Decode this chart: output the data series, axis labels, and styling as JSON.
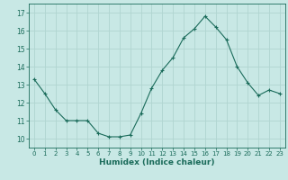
{
  "x": [
    0,
    1,
    2,
    3,
    4,
    5,
    6,
    7,
    8,
    9,
    10,
    11,
    12,
    13,
    14,
    15,
    16,
    17,
    18,
    19,
    20,
    21,
    22,
    23
  ],
  "y": [
    13.3,
    12.5,
    11.6,
    11.0,
    11.0,
    11.0,
    10.3,
    10.1,
    10.1,
    10.2,
    11.4,
    12.8,
    13.8,
    14.5,
    15.6,
    16.1,
    16.8,
    16.2,
    15.5,
    14.0,
    13.1,
    12.4,
    12.7,
    12.5
  ],
  "line_color": "#1a6b5a",
  "bg_color": "#c8e8e5",
  "grid_color": "#b0d4d0",
  "xlabel": "Humidex (Indice chaleur)",
  "ylim": [
    9.5,
    17.5
  ],
  "xlim": [
    -0.5,
    23.5
  ],
  "yticks": [
    10,
    11,
    12,
    13,
    14,
    15,
    16,
    17
  ],
  "xticks": [
    0,
    1,
    2,
    3,
    4,
    5,
    6,
    7,
    8,
    9,
    10,
    11,
    12,
    13,
    14,
    15,
    16,
    17,
    18,
    19,
    20,
    21,
    22,
    23
  ],
  "tick_color": "#1a6b5a",
  "xlabel_color": "#1a6b5a",
  "marker": "+"
}
